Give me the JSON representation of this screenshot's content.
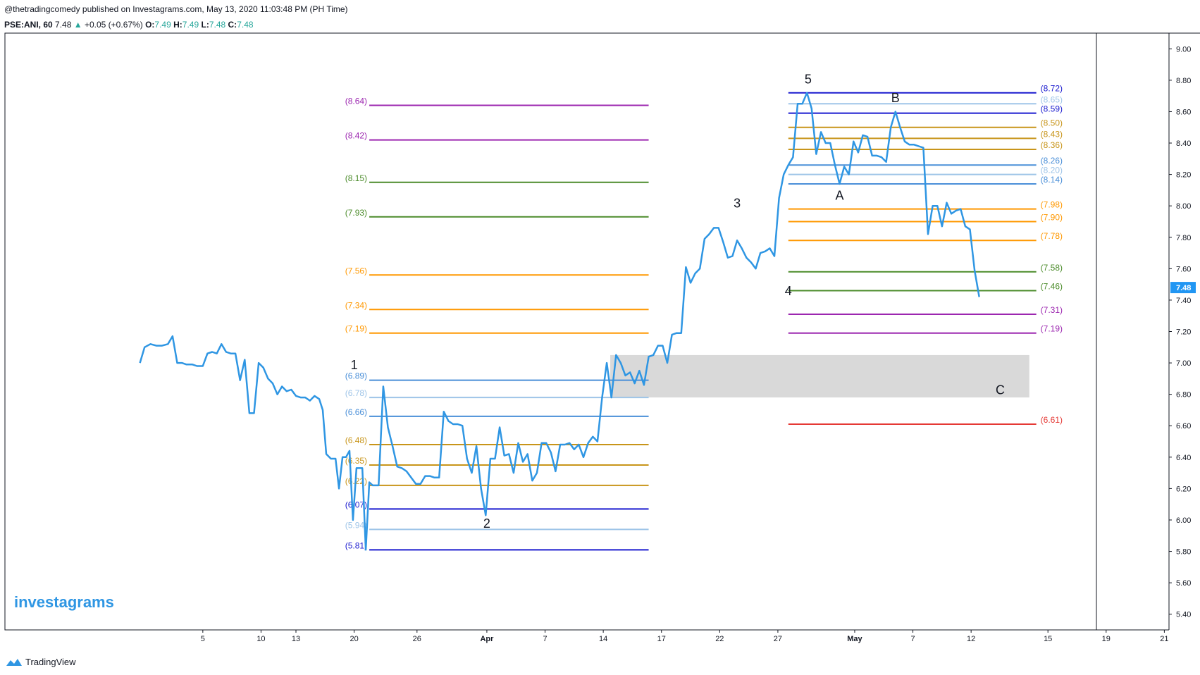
{
  "header": {
    "published": "@thetradingcomedy published on Investagrams.com, May 13, 2020 11:03:48 PM (PH Time)",
    "symbol": "PSE:ANI, 60",
    "last": "7.48",
    "change": "+0.05 (+0.67%)",
    "o_label": "O:",
    "o_value": "7.49",
    "h_label": "H:",
    "h_value": "7.49",
    "l_label": "L:",
    "l_value": "7.48",
    "c_label": "C:",
    "c_value": "7.48",
    "up_arrow": "▲"
  },
  "watermark": "investagrams",
  "footer": {
    "brand": "TradingView",
    "icon": "tradingview-logo-icon"
  },
  "colors": {
    "price_line": "#2f96e3",
    "zone": "#d9d9d9",
    "last_badge": "#2196f3"
  },
  "chart_data": {
    "type": "line",
    "ylim": [
      5.3,
      9.1
    ],
    "y_ticks": [
      "9.00",
      "8.80",
      "8.60",
      "8.40",
      "8.20",
      "8.00",
      "7.80",
      "7.60",
      "7.40",
      "7.20",
      "7.00",
      "6.80",
      "6.60",
      "6.40",
      "6.20",
      "6.00",
      "5.80",
      "5.60",
      "5.40"
    ],
    "x_ticks": [
      {
        "label": "5",
        "x": 17
      },
      {
        "label": "10",
        "x": 22
      },
      {
        "label": "13",
        "x": 25
      },
      {
        "label": "20",
        "x": 30
      },
      {
        "label": "26",
        "x": 35.4
      },
      {
        "label": "Apr",
        "x": 41.4,
        "bold": true
      },
      {
        "label": "7",
        "x": 46.4
      },
      {
        "label": "14",
        "x": 51.4
      },
      {
        "label": "17",
        "x": 56.4
      },
      {
        "label": "22",
        "x": 61.4
      },
      {
        "label": "27",
        "x": 66.4
      },
      {
        "label": "May",
        "x": 73,
        "bold": true
      },
      {
        "label": "7",
        "x": 78
      },
      {
        "label": "12",
        "x": 83
      },
      {
        "label": "15",
        "x": 89.6
      },
      {
        "label": "19",
        "x": 94.6
      },
      {
        "label": "21",
        "x": 99.6
      }
    ],
    "last_price": "7.48",
    "price_series": [
      [
        11.6,
        7.0
      ],
      [
        12,
        7.1
      ],
      [
        12.5,
        7.12
      ],
      [
        13,
        7.11
      ],
      [
        13.5,
        7.11
      ],
      [
        14,
        7.12
      ],
      [
        14.4,
        7.17
      ],
      [
        14.8,
        7.0
      ],
      [
        15.2,
        7.0
      ],
      [
        15.6,
        6.99
      ],
      [
        16.1,
        6.99
      ],
      [
        16.5,
        6.98
      ],
      [
        17,
        6.98
      ],
      [
        17.4,
        7.06
      ],
      [
        17.8,
        7.07
      ],
      [
        18.2,
        7.06
      ],
      [
        18.6,
        7.12
      ],
      [
        19,
        7.07
      ],
      [
        19.4,
        7.06
      ],
      [
        19.8,
        7.06
      ],
      [
        20.2,
        6.89
      ],
      [
        20.6,
        7.02
      ],
      [
        21,
        6.68
      ],
      [
        21.4,
        6.68
      ],
      [
        21.8,
        7.0
      ],
      [
        22.2,
        6.97
      ],
      [
        22.6,
        6.9
      ],
      [
        23,
        6.87
      ],
      [
        23.4,
        6.8
      ],
      [
        23.8,
        6.85
      ],
      [
        24.2,
        6.82
      ],
      [
        24.6,
        6.83
      ],
      [
        25,
        6.79
      ],
      [
        25.4,
        6.78
      ],
      [
        25.8,
        6.78
      ],
      [
        26.2,
        6.76
      ],
      [
        26.6,
        6.79
      ],
      [
        27,
        6.77
      ],
      [
        27.3,
        6.7
      ],
      [
        27.6,
        6.42
      ],
      [
        28,
        6.39
      ],
      [
        28.4,
        6.39
      ],
      [
        28.7,
        6.2
      ],
      [
        29,
        6.4
      ],
      [
        29.3,
        6.4
      ],
      [
        29.6,
        6.44
      ],
      [
        29.9,
        6.0
      ],
      [
        30.2,
        6.33
      ],
      [
        30.7,
        6.33
      ],
      [
        31,
        5.81
      ],
      [
        31.3,
        6.24
      ],
      [
        31.6,
        6.22
      ],
      [
        32.1,
        6.22
      ],
      [
        32.5,
        6.85
      ],
      [
        32.9,
        6.59
      ],
      [
        33.3,
        6.47
      ],
      [
        33.7,
        6.34
      ],
      [
        34.1,
        6.33
      ],
      [
        34.5,
        6.31
      ],
      [
        34.9,
        6.27
      ],
      [
        35.3,
        6.23
      ],
      [
        35.7,
        6.23
      ],
      [
        36.1,
        6.28
      ],
      [
        36.5,
        6.28
      ],
      [
        36.9,
        6.27
      ],
      [
        37.3,
        6.27
      ],
      [
        37.7,
        6.69
      ],
      [
        38.1,
        6.63
      ],
      [
        38.5,
        6.61
      ],
      [
        38.9,
        6.61
      ],
      [
        39.3,
        6.6
      ],
      [
        39.7,
        6.39
      ],
      [
        40.1,
        6.3
      ],
      [
        40.5,
        6.47
      ],
      [
        40.9,
        6.2
      ],
      [
        41.3,
        6.03
      ],
      [
        41.7,
        6.39
      ],
      [
        42.1,
        6.39
      ],
      [
        42.5,
        6.59
      ],
      [
        42.9,
        6.41
      ],
      [
        43.3,
        6.42
      ],
      [
        43.7,
        6.3
      ],
      [
        44.1,
        6.49
      ],
      [
        44.5,
        6.37
      ],
      [
        44.9,
        6.42
      ],
      [
        45.3,
        6.25
      ],
      [
        45.7,
        6.3
      ],
      [
        46.1,
        6.49
      ],
      [
        46.5,
        6.49
      ],
      [
        46.9,
        6.43
      ],
      [
        47.3,
        6.31
      ],
      [
        47.7,
        6.48
      ],
      [
        48.1,
        6.48
      ],
      [
        48.5,
        6.49
      ],
      [
        48.9,
        6.45
      ],
      [
        49.3,
        6.48
      ],
      [
        49.7,
        6.4
      ],
      [
        50.1,
        6.49
      ],
      [
        50.5,
        6.53
      ],
      [
        50.9,
        6.5
      ],
      [
        51.3,
        6.78
      ],
      [
        51.7,
        7.0
      ],
      [
        52.1,
        6.78
      ],
      [
        52.5,
        7.05
      ],
      [
        52.9,
        7.0
      ],
      [
        53.3,
        6.92
      ],
      [
        53.7,
        6.94
      ],
      [
        54.1,
        6.87
      ],
      [
        54.5,
        6.95
      ],
      [
        54.9,
        6.86
      ],
      [
        55.3,
        7.04
      ],
      [
        55.7,
        7.05
      ],
      [
        56.1,
        7.11
      ],
      [
        56.5,
        7.11
      ],
      [
        56.9,
        7.0
      ],
      [
        57.3,
        7.18
      ],
      [
        57.7,
        7.19
      ],
      [
        58.1,
        7.19
      ],
      [
        58.5,
        7.61
      ],
      [
        58.9,
        7.51
      ],
      [
        59.3,
        7.57
      ],
      [
        59.7,
        7.6
      ],
      [
        60.1,
        7.79
      ],
      [
        60.5,
        7.82
      ],
      [
        60.9,
        7.86
      ],
      [
        61.3,
        7.86
      ],
      [
        61.7,
        7.77
      ],
      [
        62.1,
        7.67
      ],
      [
        62.5,
        7.68
      ],
      [
        62.9,
        7.78
      ],
      [
        63.3,
        7.73
      ],
      [
        63.7,
        7.67
      ],
      [
        64.1,
        7.64
      ],
      [
        64.5,
        7.6
      ],
      [
        64.9,
        7.7
      ],
      [
        65.3,
        7.71
      ],
      [
        65.7,
        7.73
      ],
      [
        66.1,
        7.68
      ],
      [
        66.5,
        8.05
      ],
      [
        66.9,
        8.2
      ],
      [
        67.3,
        8.26
      ],
      [
        67.7,
        8.31
      ],
      [
        68.1,
        8.65
      ],
      [
        68.5,
        8.65
      ],
      [
        68.9,
        8.72
      ],
      [
        69.3,
        8.62
      ],
      [
        69.7,
        8.33
      ],
      [
        70.1,
        8.47
      ],
      [
        70.5,
        8.4
      ],
      [
        70.9,
        8.4
      ],
      [
        71.3,
        8.26
      ],
      [
        71.7,
        8.14
      ],
      [
        72.1,
        8.25
      ],
      [
        72.5,
        8.2
      ],
      [
        72.9,
        8.41
      ],
      [
        73.3,
        8.34
      ],
      [
        73.7,
        8.45
      ],
      [
        74.1,
        8.44
      ],
      [
        74.5,
        8.32
      ],
      [
        74.9,
        8.32
      ],
      [
        75.3,
        8.31
      ],
      [
        75.7,
        8.28
      ],
      [
        76.1,
        8.5
      ],
      [
        76.5,
        8.6
      ],
      [
        76.9,
        8.5
      ],
      [
        77.3,
        8.41
      ],
      [
        77.7,
        8.39
      ],
      [
        78.1,
        8.39
      ],
      [
        78.5,
        8.38
      ],
      [
        78.9,
        8.37
      ],
      [
        79.3,
        7.82
      ],
      [
        79.7,
        8.0
      ],
      [
        80.1,
        8.0
      ],
      [
        80.5,
        7.87
      ],
      [
        80.9,
        8.02
      ],
      [
        81.3,
        7.95
      ],
      [
        81.7,
        7.97
      ],
      [
        82.1,
        7.98
      ],
      [
        82.5,
        7.87
      ],
      [
        82.9,
        7.85
      ],
      [
        83.3,
        7.59
      ],
      [
        83.7,
        7.42
      ]
    ],
    "fib_lines": [
      {
        "label": "(8.64)",
        "value": 8.64,
        "color": "#9c27b0",
        "x0": 31.3,
        "x1": 55.3,
        "side": "left"
      },
      {
        "label": "(8.42)",
        "value": 8.42,
        "color": "#9c27b0",
        "x0": 31.3,
        "x1": 55.3,
        "side": "left"
      },
      {
        "label": "(8.15)",
        "value": 8.15,
        "color": "#4c8c2b",
        "x0": 31.3,
        "x1": 55.3,
        "side": "left"
      },
      {
        "label": "(7.93)",
        "value": 7.93,
        "color": "#4c8c2b",
        "x0": 31.3,
        "x1": 55.3,
        "side": "left"
      },
      {
        "label": "(7.56)",
        "value": 7.56,
        "color": "#ff9800",
        "x0": 31.3,
        "x1": 55.3,
        "side": "left"
      },
      {
        "label": "(7.34)",
        "value": 7.34,
        "color": "#ff9800",
        "x0": 31.3,
        "x1": 55.3,
        "side": "left"
      },
      {
        "label": "(7.19)",
        "value": 7.19,
        "color": "#ff9800",
        "x0": 31.3,
        "x1": 55.3,
        "side": "left"
      },
      {
        "label": "(6.89)",
        "value": 6.89,
        "color": "#4a8fd8",
        "x0": 31.3,
        "x1": 55.3,
        "side": "left"
      },
      {
        "label": "(6.78)",
        "value": 6.78,
        "color": "#9fc5e8",
        "x0": 31.3,
        "x1": 55.3,
        "side": "left"
      },
      {
        "label": "(6.66)",
        "value": 6.66,
        "color": "#4a8fd8",
        "x0": 31.3,
        "x1": 55.3,
        "side": "left"
      },
      {
        "label": "(6.48)",
        "value": 6.48,
        "color": "#c8951a",
        "x0": 31.3,
        "x1": 55.3,
        "side": "left"
      },
      {
        "label": "(6.35)",
        "value": 6.35,
        "color": "#c8951a",
        "x0": 31.3,
        "x1": 55.3,
        "side": "left"
      },
      {
        "label": "(6.22)",
        "value": 6.22,
        "color": "#c8951a",
        "x0": 31.3,
        "x1": 55.3,
        "side": "left"
      },
      {
        "label": "(6.07)",
        "value": 6.07,
        "color": "#1a1acf",
        "x0": 31.3,
        "x1": 55.3,
        "side": "left"
      },
      {
        "label": "(5.94)",
        "value": 5.94,
        "color": "#9fc5e8",
        "x0": 31.3,
        "x1": 55.3,
        "side": "left"
      },
      {
        "label": "(5.81)",
        "value": 5.81,
        "color": "#1a1acf",
        "x0": 31.3,
        "x1": 55.3,
        "side": "left"
      },
      {
        "label": "(8.72)",
        "value": 8.72,
        "color": "#1a1acf",
        "x0": 67.3,
        "x1": 88.6,
        "side": "right"
      },
      {
        "label": "(8.65)",
        "value": 8.65,
        "color": "#9fc5e8",
        "x0": 67.3,
        "x1": 88.6,
        "side": "right"
      },
      {
        "label": "(8.59)",
        "value": 8.59,
        "color": "#1a1acf",
        "x0": 67.3,
        "x1": 88.6,
        "side": "right"
      },
      {
        "label": "(8.50)",
        "value": 8.5,
        "color": "#c8951a",
        "x0": 67.3,
        "x1": 88.6,
        "side": "right"
      },
      {
        "label": "(8.43)",
        "value": 8.43,
        "color": "#c8951a",
        "x0": 67.3,
        "x1": 88.6,
        "side": "right"
      },
      {
        "label": "(8.36)",
        "value": 8.36,
        "color": "#c8951a",
        "x0": 67.3,
        "x1": 88.6,
        "side": "right"
      },
      {
        "label": "(8.26)",
        "value": 8.26,
        "color": "#4a8fd8",
        "x0": 67.3,
        "x1": 88.6,
        "side": "right"
      },
      {
        "label": "(8.20)",
        "value": 8.2,
        "color": "#9fc5e8",
        "x0": 67.3,
        "x1": 88.6,
        "side": "right"
      },
      {
        "label": "(8.14)",
        "value": 8.14,
        "color": "#4a8fd8",
        "x0": 67.3,
        "x1": 88.6,
        "side": "right"
      },
      {
        "label": "(7.98)",
        "value": 7.98,
        "color": "#ff9800",
        "x0": 67.3,
        "x1": 88.6,
        "side": "right"
      },
      {
        "label": "(7.90)",
        "value": 7.9,
        "color": "#ff9800",
        "x0": 67.3,
        "x1": 88.6,
        "side": "right"
      },
      {
        "label": "(7.78)",
        "value": 7.78,
        "color": "#ff9800",
        "x0": 67.3,
        "x1": 88.6,
        "side": "right"
      },
      {
        "label": "(7.58)",
        "value": 7.58,
        "color": "#4c8c2b",
        "x0": 67.3,
        "x1": 88.6,
        "side": "right"
      },
      {
        "label": "(7.46)",
        "value": 7.46,
        "color": "#4c8c2b",
        "x0": 67.3,
        "x1": 88.6,
        "side": "right"
      },
      {
        "label": "(7.31)",
        "value": 7.31,
        "color": "#9c27b0",
        "x0": 67.3,
        "x1": 88.6,
        "side": "right"
      },
      {
        "label": "(7.19)",
        "value": 7.19,
        "color": "#9c27b0",
        "x0": 67.3,
        "x1": 88.6,
        "side": "right"
      },
      {
        "label": "(6.61)",
        "value": 6.61,
        "color": "#e53935",
        "x0": 67.3,
        "x1": 88.6,
        "side": "right"
      }
    ],
    "zone": {
      "x0": 52.0,
      "x1": 88.0,
      "y_low": 6.78,
      "y_high": 7.05
    },
    "wave_labels": [
      {
        "text": "1",
        "x": 30,
        "y": 6.96
      },
      {
        "text": "2",
        "x": 41.4,
        "y": 5.95
      },
      {
        "text": "3",
        "x": 62.9,
        "y": 7.99
      },
      {
        "text": "4",
        "x": 67.3,
        "y": 7.43
      },
      {
        "text": "5",
        "x": 69,
        "y": 8.78
      },
      {
        "text": "A",
        "x": 71.7,
        "y": 8.04
      },
      {
        "text": "B",
        "x": 76.5,
        "y": 8.66
      },
      {
        "text": "C",
        "x": 85.5,
        "y": 6.8
      }
    ]
  }
}
